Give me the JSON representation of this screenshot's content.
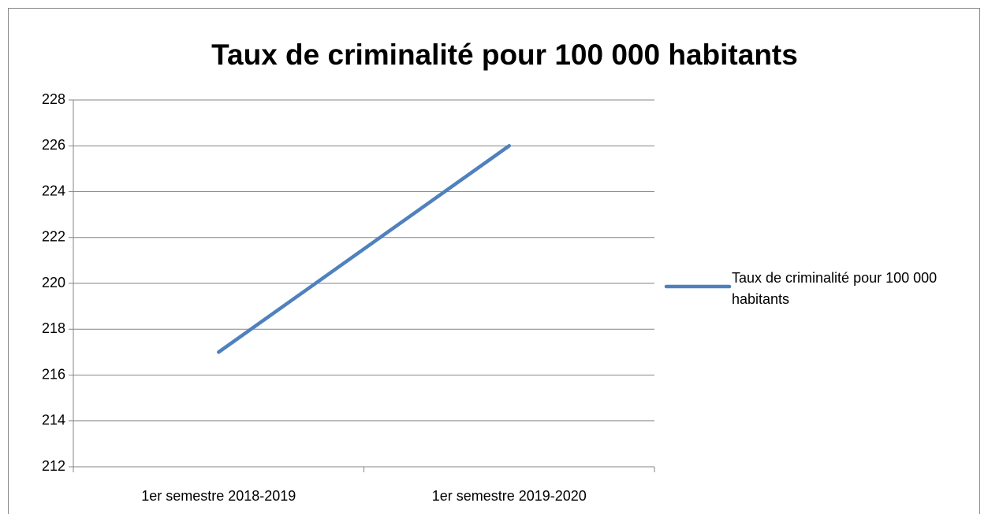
{
  "chart_data": {
    "type": "line",
    "title": "Taux de criminalité pour 100 000 habitants",
    "categories": [
      "1er semestre 2018-2019",
      "1er semestre 2019-2020"
    ],
    "series": [
      {
        "name": "Taux de criminalité pour 100 000 habitants",
        "color": "#4f81bd",
        "values": [
          217,
          226
        ]
      }
    ],
    "ylim": [
      212,
      228
    ],
    "yticks": [
      212,
      214,
      216,
      218,
      220,
      222,
      224,
      226,
      228
    ],
    "grid": true,
    "legend": "right"
  }
}
